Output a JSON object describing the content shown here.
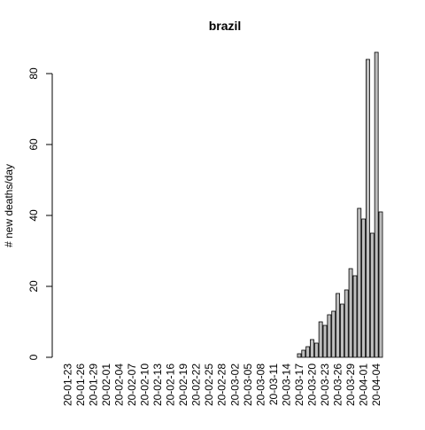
{
  "chart_data": {
    "type": "bar",
    "title": "brazil",
    "xlabel": "",
    "ylabel": "# new deaths/day",
    "ylim": [
      0,
      86
    ],
    "yticks": [
      0,
      20,
      40,
      60,
      80
    ],
    "xtick_labels": [
      "20-01-23",
      "20-01-26",
      "20-01-29",
      "20-02-01",
      "20-02-04",
      "20-02-07",
      "20-02-10",
      "20-02-13",
      "20-02-16",
      "20-02-19",
      "20-02-22",
      "20-02-25",
      "20-02-28",
      "20-03-02",
      "20-03-05",
      "20-03-08",
      "20-03-11",
      "20-03-14",
      "20-03-17",
      "20-03-20",
      "20-03-23",
      "20-03-26",
      "20-03-29",
      "20-04-01",
      "20-04-04"
    ],
    "xtick_every": 3,
    "categories": [
      "20-01-23",
      "20-01-24",
      "20-01-25",
      "20-01-26",
      "20-01-27",
      "20-01-28",
      "20-01-29",
      "20-01-30",
      "20-01-31",
      "20-02-01",
      "20-02-02",
      "20-02-03",
      "20-02-04",
      "20-02-05",
      "20-02-06",
      "20-02-07",
      "20-02-08",
      "20-02-09",
      "20-02-10",
      "20-02-11",
      "20-02-12",
      "20-02-13",
      "20-02-14",
      "20-02-15",
      "20-02-16",
      "20-02-17",
      "20-02-18",
      "20-02-19",
      "20-02-20",
      "20-02-21",
      "20-02-22",
      "20-02-23",
      "20-02-24",
      "20-02-25",
      "20-02-26",
      "20-02-27",
      "20-02-28",
      "20-02-29",
      "20-03-01",
      "20-03-02",
      "20-03-03",
      "20-03-04",
      "20-03-05",
      "20-03-06",
      "20-03-07",
      "20-03-08",
      "20-03-09",
      "20-03-10",
      "20-03-11",
      "20-03-12",
      "20-03-13",
      "20-03-14",
      "20-03-15",
      "20-03-16",
      "20-03-17",
      "20-03-18",
      "20-03-19",
      "20-03-20",
      "20-03-21",
      "20-03-22",
      "20-03-23",
      "20-03-24",
      "20-03-25",
      "20-03-26",
      "20-03-27",
      "20-03-28",
      "20-03-29",
      "20-03-30",
      "20-03-31",
      "20-04-01",
      "20-04-02",
      "20-04-03",
      "20-04-04",
      "20-04-05"
    ],
    "values": [
      0,
      0,
      0,
      0,
      0,
      0,
      0,
      0,
      0,
      0,
      0,
      0,
      0,
      0,
      0,
      0,
      0,
      0,
      0,
      0,
      0,
      0,
      0,
      0,
      0,
      0,
      0,
      0,
      0,
      0,
      0,
      0,
      0,
      0,
      0,
      0,
      0,
      0,
      0,
      0,
      0,
      0,
      0,
      0,
      0,
      0,
      0,
      0,
      0,
      0,
      0,
      0,
      0,
      0,
      1,
      2,
      3,
      5,
      4,
      10,
      9,
      12,
      13,
      18,
      15,
      19,
      25,
      23,
      42,
      39,
      84,
      35,
      86,
      41
    ],
    "bar_color": "#bebebe",
    "bar_border_color": "#000000",
    "grid": false
  }
}
